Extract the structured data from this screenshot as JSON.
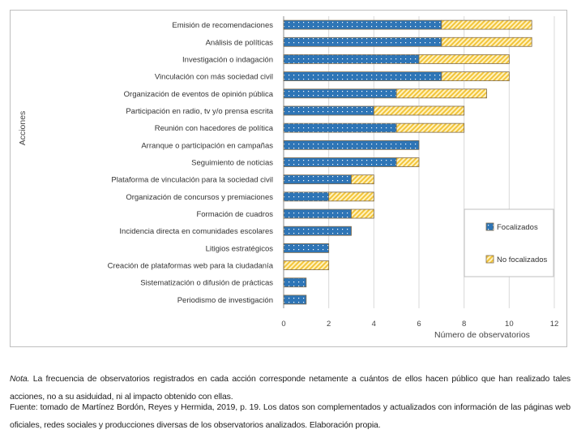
{
  "chart_data": {
    "type": "bar",
    "orientation": "horizontal",
    "stacked": true,
    "categories": [
      "Emisión de recomendaciones",
      "Análisis de políticas",
      "Investigación o indagación",
      "Vinculación con más sociedad civil",
      "Organización de eventos de opinión pública",
      "Participación en radio, tv y/o prensa escrita",
      "Reunión con hacedores de política",
      "Arranque o participación en campañas",
      "Seguimiento de noticias",
      "Plataforma de vinculación para la sociedad civil",
      "Organización de concursos y premiaciones",
      "Formación de cuadros",
      "Incidencia directa en comunidades escolares",
      "Litigios estratégicos",
      "Creación de plataformas web para la ciudadanía",
      "Sistematización o difusión de prácticas",
      "Periodismo de investigación"
    ],
    "series": [
      {
        "name": "Focalizados",
        "color": "#2e75b6",
        "values": [
          7,
          7,
          6,
          7,
          5,
          4,
          5,
          6,
          5,
          3,
          2,
          3,
          3,
          2,
          0,
          1,
          1
        ]
      },
      {
        "name": "No focalizados",
        "color": "#ffd966",
        "values": [
          4,
          4,
          4,
          3,
          4,
          4,
          3,
          0,
          1,
          1,
          2,
          1,
          0,
          0,
          2,
          0,
          0
        ]
      }
    ],
    "xlabel": "Número de observatorios",
    "ylabel": "Acciones",
    "xlim": [
      0,
      12
    ],
    "xticks": [
      0,
      2,
      4,
      6,
      8,
      10,
      12
    ],
    "grid": "vertical",
    "legend": "right"
  },
  "notes": {
    "nota_label": "Nota.",
    "nota_text": " La frecuencia de observatorios registrados en cada acción corresponde netamente a cuántos de ellos hacen público que han realizado tales acciones, no a su asiduidad, ni al impacto obtenido con ellas.",
    "fuente": "Fuente: tomado de Martínez Bordón, Reyes y Hermida, 2019, p. 19. Los datos son complementados y actualizados con información de las páginas web oficiales, redes sociales y producciones diversas de los observatorios analizados. Elaboración propia."
  }
}
